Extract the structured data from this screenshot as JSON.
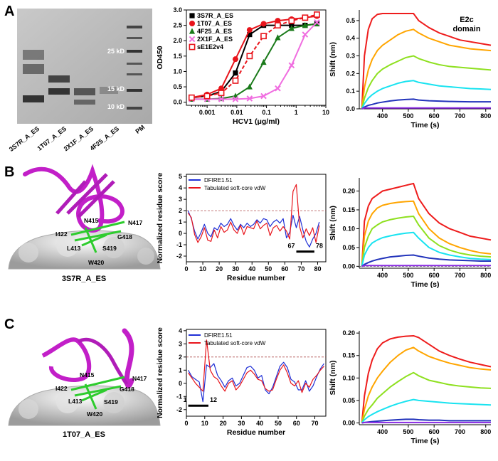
{
  "figure": {
    "panel_labels": [
      "A",
      "B",
      "C"
    ],
    "gel": {
      "lanes": [
        "3S7R_A_ES",
        "1T07_A_ES",
        "2X1F_A_ES",
        "4F25_A_ES",
        "PM"
      ],
      "markers": [
        "25 kD",
        "15 kD",
        "10 kD"
      ]
    },
    "structures": [
      {
        "name": "3S7R_A_ES",
        "residues": [
          "N415",
          "N417",
          "I422",
          "G418",
          "L413",
          "S419",
          "W420"
        ]
      },
      {
        "name": "1T07_A_ES",
        "residues": [
          "N415",
          "N417",
          "I422",
          "G418",
          "L413",
          "S419",
          "W420"
        ]
      }
    ]
  },
  "chart_data": [
    {
      "type": "line",
      "xscale": "log",
      "frame": "box",
      "legend": "upper left",
      "ylabel": "OD450",
      "xlabel": "HCV1 (μg/ml)",
      "x": [
        0.0003,
        0.001,
        0.003,
        0.009,
        0.027,
        0.08,
        0.24,
        0.7,
        2,
        5
      ],
      "xlim": [
        0.0002,
        10
      ],
      "xticks": [
        0.001,
        0.01,
        0.1,
        1,
        10
      ],
      "ylim": [
        -0.1,
        3
      ],
      "yticks": [
        {
          "value": 0,
          "label": "0.0"
        },
        0.5,
        {
          "value": 1,
          "label": "1.0"
        },
        1.5,
        {
          "value": 2,
          "label": "2.0"
        },
        2.5,
        {
          "value": 3,
          "label": "3.0"
        }
      ],
      "series": [
        {
          "name": "3S7R_A_ES",
          "color": "#000000",
          "marker": "square",
          "values": [
            0.15,
            0.2,
            0.35,
            0.95,
            2.2,
            2.5,
            2.5,
            2.5,
            2.5,
            2.55
          ]
        },
        {
          "name": "1T07_A_ES",
          "color": "#e8141b",
          "marker": "circle",
          "values": [
            0.15,
            0.25,
            0.45,
            1.4,
            2.35,
            2.55,
            2.65,
            2.7,
            2.75,
            2.8
          ]
        },
        {
          "name": "4F25_A_ES",
          "color": "#1a7a1a",
          "marker": "triangle",
          "values": [
            0.1,
            0.1,
            0.12,
            0.2,
            0.5,
            1.3,
            2.1,
            2.4,
            2.5,
            2.55
          ]
        },
        {
          "name": "2X1F_A_ES",
          "color": "#f06ee0",
          "marker": "x",
          "values": [
            0.1,
            0.1,
            0.1,
            0.1,
            0.12,
            0.2,
            0.45,
            1.2,
            2.2,
            2.6
          ]
        },
        {
          "name": "sE1E2v4",
          "color": "#e8141b",
          "marker": "open-square",
          "dash": true,
          "values": [
            0.15,
            0.2,
            0.3,
            0.7,
            1.5,
            2.15,
            2.5,
            2.65,
            2.75,
            2.85
          ]
        }
      ]
    },
    {
      "type": "line",
      "ylabel": "Shift (nm)",
      "xlabel": "Time (s)",
      "annotation": "E2c domain",
      "x": [
        320,
        330,
        345,
        360,
        380,
        400,
        430,
        460,
        490,
        520,
        540,
        580,
        620,
        660,
        700,
        740,
        780,
        820
      ],
      "xlim": [
        310,
        820
      ],
      "xticks": [
        400,
        500,
        600,
        700,
        800
      ],
      "ylim": [
        0,
        0.56
      ],
      "yticks": [
        {
          "value": 0,
          "label": "0.0"
        },
        0.1,
        0.2,
        0.3,
        0.4,
        0.5
      ],
      "series": [
        {
          "color": "#ee1c1c",
          "values": [
            0,
            0.3,
            0.45,
            0.51,
            0.535,
            0.54,
            0.54,
            0.54,
            0.54,
            0.54,
            0.5,
            0.46,
            0.43,
            0.41,
            0.39,
            0.38,
            0.37,
            0.36
          ]
        },
        {
          "color": "#ffa500",
          "values": [
            0,
            0.12,
            0.22,
            0.28,
            0.33,
            0.36,
            0.39,
            0.42,
            0.44,
            0.45,
            0.43,
            0.4,
            0.38,
            0.36,
            0.35,
            0.34,
            0.335,
            0.33
          ]
        },
        {
          "color": "#8ee01f",
          "values": [
            0,
            0.06,
            0.12,
            0.16,
            0.2,
            0.225,
            0.25,
            0.27,
            0.29,
            0.3,
            0.285,
            0.265,
            0.25,
            0.24,
            0.235,
            0.23,
            0.225,
            0.22
          ]
        },
        {
          "color": "#19e3f0",
          "values": [
            0,
            0.03,
            0.06,
            0.08,
            0.1,
            0.115,
            0.13,
            0.145,
            0.155,
            0.16,
            0.15,
            0.14,
            0.13,
            0.125,
            0.12,
            0.115,
            0.113,
            0.11
          ]
        },
        {
          "color": "#2233bb",
          "values": [
            0,
            0.01,
            0.02,
            0.025,
            0.033,
            0.038,
            0.045,
            0.05,
            0.053,
            0.055,
            0.05,
            0.046,
            0.044,
            0.042,
            0.041,
            0.04,
            0.04,
            0.04
          ]
        },
        {
          "color": "#8a2be2",
          "values": [
            0,
            0.005,
            0.005,
            0.005,
            0.005,
            0.005,
            0.005,
            0.005,
            0.005,
            0.005,
            0.005,
            0.005,
            0.005,
            0.005,
            0.005,
            0.005,
            0.005,
            0.005
          ]
        }
      ]
    },
    {
      "type": "line",
      "frame": "box",
      "legend": "upper left",
      "ylabel": "Normalized residue score",
      "xlabel": "Residue number",
      "x": [
        1,
        3,
        5,
        7,
        9,
        11,
        13,
        15,
        17,
        19,
        21,
        23,
        25,
        27,
        29,
        31,
        33,
        35,
        37,
        39,
        41,
        43,
        45,
        47,
        49,
        51,
        53,
        55,
        57,
        59,
        61,
        63,
        65,
        67,
        69,
        71,
        73,
        75,
        77,
        79,
        81
      ],
      "xlim": [
        0,
        85
      ],
      "xticks": [
        0,
        10,
        20,
        30,
        40,
        50,
        60,
        70,
        80
      ],
      "ylim": [
        -2.5,
        5.2
      ],
      "yticks": [
        -2,
        -1,
        0,
        1,
        2,
        3,
        4,
        5
      ],
      "reference_line": 2,
      "highlight": {
        "range": [
          67,
          78
        ],
        "y": -1.6
      },
      "series": [
        {
          "name": "DFIRE1.51",
          "color": "#1f2fd6",
          "values": [
            2.0,
            1.3,
            0.2,
            -0.5,
            0.1,
            0.8,
            0.0,
            -0.3,
            0.5,
            0.3,
            0.9,
            0.6,
            0.8,
            1.3,
            0.7,
            0.3,
            0.8,
            0.5,
            0.9,
            0.6,
            0.8,
            1.2,
            0.9,
            1.3,
            1.2,
            0.6,
            1.0,
            1.2,
            0.9,
            1.3,
            -0.4,
            0.1,
            1.6,
            0.5,
            1.5,
            0.3,
            -0.7,
            -1.2,
            -0.5,
            0.0,
            1.0
          ]
        },
        {
          "name": "Tabulated soft-core vdW",
          "color": "#e8141b",
          "values": [
            1.8,
            1.4,
            -0.1,
            -0.8,
            -0.3,
            0.5,
            -0.6,
            -0.7,
            0.3,
            -0.4,
            0.6,
            0.1,
            0.3,
            1.0,
            0.3,
            0.0,
            0.7,
            -0.1,
            0.6,
            0.5,
            0.4,
            1.1,
            0.4,
            0.7,
            0.9,
            -0.2,
            0.5,
            0.7,
            0.2,
            0.6,
            0.2,
            -0.5,
            3.7,
            4.3,
            0.6,
            -0.4,
            0.4,
            -0.2,
            0.5,
            -0.8,
            0.7
          ]
        }
      ]
    },
    {
      "type": "line",
      "ylabel": "Shift (nm)",
      "xlabel": "Time (s)",
      "reference_line": 0,
      "x": [
        320,
        330,
        345,
        360,
        380,
        400,
        430,
        460,
        490,
        520,
        540,
        580,
        620,
        660,
        700,
        740,
        780,
        820
      ],
      "xlim": [
        310,
        820
      ],
      "xticks": [
        400,
        500,
        600,
        700,
        800
      ],
      "ylim": [
        -0.005,
        0.235
      ],
      "yticks": [
        {
          "value": 0,
          "label": "0.00"
        },
        0.05,
        {
          "value": 0.1,
          "label": "0.10"
        },
        0.15,
        {
          "value": 0.2,
          "label": "0.20"
        }
      ],
      "series": [
        {
          "color": "#ee1c1c",
          "values": [
            0,
            0.12,
            0.16,
            0.18,
            0.19,
            0.2,
            0.205,
            0.21,
            0.215,
            0.22,
            0.18,
            0.14,
            0.115,
            0.1,
            0.09,
            0.08,
            0.075,
            0.07
          ]
        },
        {
          "color": "#ffa500",
          "values": [
            0,
            0.08,
            0.12,
            0.14,
            0.155,
            0.162,
            0.167,
            0.17,
            0.172,
            0.173,
            0.14,
            0.1,
            0.075,
            0.06,
            0.05,
            0.042,
            0.036,
            0.033
          ]
        },
        {
          "color": "#8ee01f",
          "values": [
            0,
            0.05,
            0.08,
            0.1,
            0.11,
            0.118,
            0.124,
            0.128,
            0.131,
            0.133,
            0.11,
            0.075,
            0.055,
            0.043,
            0.035,
            0.03,
            0.027,
            0.025
          ]
        },
        {
          "color": "#19e3f0",
          "values": [
            0,
            0.03,
            0.05,
            0.062,
            0.07,
            0.076,
            0.081,
            0.085,
            0.088,
            0.09,
            0.075,
            0.05,
            0.037,
            0.03,
            0.025,
            0.021,
            0.019,
            0.018
          ]
        },
        {
          "color": "#2233bb",
          "values": [
            0,
            0.005,
            0.01,
            0.014,
            0.018,
            0.021,
            0.025,
            0.027,
            0.029,
            0.03,
            0.027,
            0.022,
            0.019,
            0.017,
            0.016,
            0.015,
            0.014,
            0.014
          ]
        },
        {
          "color": "#8a2be2",
          "values": [
            0,
            0.002,
            0.002,
            0.002,
            0.002,
            0.002,
            0.002,
            0.002,
            0.002,
            0.002,
            0.002,
            0.002,
            0.002,
            0.002,
            0.002,
            0.002,
            0.002,
            0.002
          ]
        }
      ]
    },
    {
      "type": "line",
      "frame": "box",
      "legend": "upper left",
      "ylabel": "Normalized residue score",
      "xlabel": "Residue number",
      "x": [
        1,
        3,
        5,
        7,
        9,
        11,
        13,
        15,
        17,
        19,
        21,
        23,
        25,
        27,
        29,
        31,
        33,
        35,
        37,
        39,
        41,
        43,
        45,
        47,
        49,
        51,
        53,
        55,
        57,
        59,
        61,
        63,
        65,
        67,
        69,
        71,
        73,
        75
      ],
      "xlim": [
        0,
        76
      ],
      "xticks": [
        0,
        10,
        20,
        30,
        40,
        50,
        60,
        70
      ],
      "ylim": [
        -2.5,
        4.1
      ],
      "yticks": [
        -2,
        -1,
        0,
        1,
        2,
        3,
        4
      ],
      "reference_line": 2,
      "highlight": {
        "range": [
          1,
          12
        ],
        "y": -1.7
      },
      "series": [
        {
          "name": "DFIRE1.51",
          "color": "#1f2fd6",
          "values": [
            1.0,
            0.5,
            0.3,
            0.1,
            -1.4,
            1.4,
            1.2,
            1.5,
            0.6,
            0.2,
            -0.3,
            0.2,
            0.4,
            -0.2,
            0.0,
            0.6,
            1.2,
            1.3,
            1.0,
            0.4,
            0.6,
            -0.5,
            -0.8,
            -0.3,
            0.5,
            1.3,
            1.6,
            1.2,
            0.3,
            0.1,
            -0.5,
            -0.5,
            0.2,
            -0.6,
            -0.2,
            0.5,
            1.1,
            1.5
          ]
        },
        {
          "name": "Tabulated soft-core vdW",
          "color": "#e8141b",
          "values": [
            0.8,
            0.4,
            0.0,
            -0.3,
            -0.6,
            3.3,
            1.0,
            0.5,
            0.3,
            -0.2,
            -0.6,
            0.0,
            0.2,
            -0.5,
            -0.2,
            0.3,
            0.8,
            1.0,
            0.7,
            0.3,
            0.2,
            -0.4,
            -0.6,
            -0.5,
            0.3,
            1.0,
            1.4,
            0.8,
            0.0,
            -0.2,
            0.2,
            -0.7,
            0.0,
            -0.3,
            0.3,
            0.6,
            1.0,
            1.3
          ]
        }
      ]
    },
    {
      "type": "line",
      "ylabel": "Shift (nm)",
      "xlabel": "Time (s)",
      "x": [
        320,
        330,
        345,
        360,
        380,
        400,
        430,
        460,
        490,
        520,
        540,
        580,
        620,
        660,
        700,
        740,
        780,
        820
      ],
      "xlim": [
        310,
        820
      ],
      "xticks": [
        400,
        500,
        600,
        700,
        800
      ],
      "ylim": [
        -0.004,
        0.205
      ],
      "yticks": [
        {
          "value": 0,
          "label": "0.00"
        },
        0.05,
        {
          "value": 0.1,
          "label": "0.10"
        },
        0.15,
        {
          "value": 0.2,
          "label": "0.20"
        }
      ],
      "series": [
        {
          "color": "#ee1c1c",
          "values": [
            0,
            0.06,
            0.11,
            0.14,
            0.165,
            0.178,
            0.187,
            0.191,
            0.193,
            0.194,
            0.19,
            0.175,
            0.16,
            0.15,
            0.142,
            0.135,
            0.13,
            0.125
          ]
        },
        {
          "color": "#ffa500",
          "values": [
            0,
            0.03,
            0.06,
            0.08,
            0.1,
            0.115,
            0.135,
            0.15,
            0.162,
            0.168,
            0.16,
            0.148,
            0.14,
            0.133,
            0.128,
            0.123,
            0.12,
            0.118
          ]
        },
        {
          "color": "#8ee01f",
          "values": [
            0,
            0.015,
            0.03,
            0.04,
            0.055,
            0.065,
            0.08,
            0.092,
            0.103,
            0.112,
            0.105,
            0.095,
            0.09,
            0.085,
            0.082,
            0.08,
            0.078,
            0.077
          ]
        },
        {
          "color": "#19e3f0",
          "values": [
            0,
            0.007,
            0.014,
            0.019,
            0.025,
            0.03,
            0.037,
            0.043,
            0.048,
            0.052,
            0.05,
            0.048,
            0.046,
            0.044,
            0.043,
            0.042,
            0.041,
            0.04
          ]
        },
        {
          "color": "#2233bb",
          "values": [
            0,
            0.001,
            0.002,
            0.003,
            0.004,
            0.005,
            0.006,
            0.007,
            0.008,
            0.008,
            0.007,
            0.006,
            0.006,
            0.005,
            0.005,
            0.005,
            0.005,
            0.005
          ]
        },
        {
          "color": "#8a2be2",
          "values": [
            0,
            0.001,
            0.001,
            0.001,
            0.001,
            0.001,
            0.001,
            0.001,
            0.001,
            0.001,
            0.001,
            0.001,
            0.001,
            0.001,
            0.001,
            0.001,
            0.001,
            0.001
          ]
        }
      ]
    }
  ]
}
